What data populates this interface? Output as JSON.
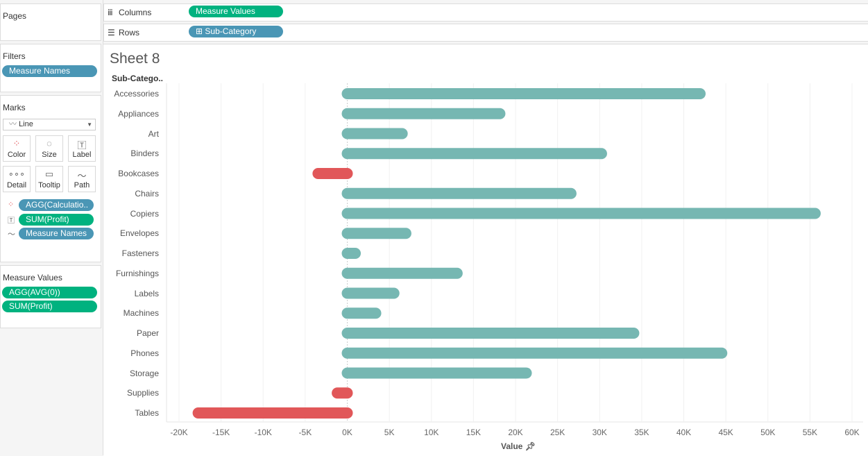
{
  "pages": {
    "title": "Pages"
  },
  "filters": {
    "title": "Filters",
    "pills": [
      "Measure Names"
    ]
  },
  "marks": {
    "title": "Marks",
    "type": "Line",
    "buttons": [
      "Color",
      "Size",
      "Label",
      "Detail",
      "Tooltip",
      "Path"
    ],
    "pills": [
      {
        "label": "AGG(Calculatio..",
        "kind": "color"
      },
      {
        "label": "SUM(Profit)",
        "kind": "label"
      },
      {
        "label": "Measure Names",
        "kind": "path"
      }
    ]
  },
  "measure_values": {
    "title": "Measure Values",
    "pills": [
      "AGG(AVG(0))",
      "SUM(Profit)"
    ]
  },
  "shelves": {
    "columns_label": "Columns",
    "columns_pill": "Measure Values",
    "rows_label": "Rows",
    "rows_pill": "Sub-Category"
  },
  "sheet": {
    "title": "Sheet 8",
    "row_header": "Sub-Catego.."
  },
  "colors": {
    "positive": "#76b7b2",
    "negative": "#e15759"
  },
  "chart_data": {
    "type": "bar",
    "xlabel": "Value",
    "xlim": [
      -20000,
      60000
    ],
    "tick_labels": [
      "-20K",
      "-15K",
      "-10K",
      "-5K",
      "0K",
      "5K",
      "10K",
      "15K",
      "20K",
      "25K",
      "30K",
      "35K",
      "40K",
      "45K",
      "50K",
      "55K",
      "60K"
    ],
    "categories": [
      "Accessories",
      "Appliances",
      "Art",
      "Binders",
      "Bookcases",
      "Chairs",
      "Copiers",
      "Envelopes",
      "Fasteners",
      "Furnishings",
      "Labels",
      "Machines",
      "Paper",
      "Phones",
      "Storage",
      "Supplies",
      "Tables"
    ],
    "values": [
      41937,
      18138,
      6528,
      30222,
      -3473,
      26590,
      55618,
      6964,
      950,
      13059,
      5546,
      3385,
      34054,
      44516,
      21279,
      -1189,
      -17725
    ]
  }
}
